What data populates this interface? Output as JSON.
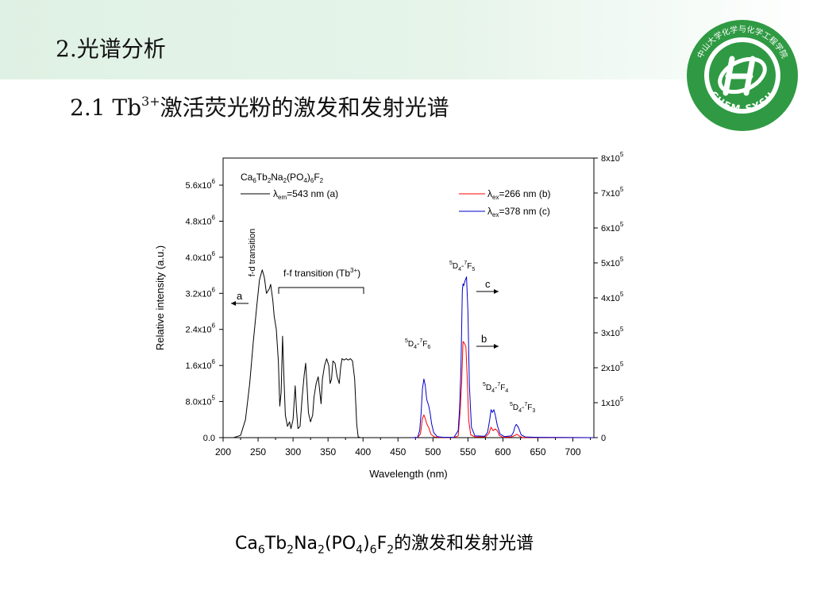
{
  "slide": {
    "title": "2.光谱分析",
    "subtitle_prefix": "2.1 Tb",
    "subtitle_sup": "3+",
    "subtitle_suffix": "激活荧光粉的激发和发射光谱",
    "caption_parts": [
      "Ca",
      "6",
      "Tb",
      "2",
      "Na",
      "2",
      "(PO",
      "4",
      ")",
      "6",
      "F",
      "2",
      "的激发和发射光谱"
    ]
  },
  "logo": {
    "text_top": "中山大学化学与化学工程学院",
    "text_bottom": "CHEM SYSU",
    "colors": {
      "green": "#2f9a43",
      "white": "#ffffff"
    }
  },
  "chart_data": {
    "type": "line",
    "xlabel": "Wavelength (nm)",
    "ylabel": "Relative intensity (a.u.)",
    "xlim": [
      200,
      730
    ],
    "ylim_left": [
      0,
      6200000
    ],
    "ylim_right": [
      0,
      800000
    ],
    "x_ticks": [
      200,
      250,
      300,
      350,
      400,
      450,
      500,
      550,
      600,
      650,
      700
    ],
    "left_ticks": [
      {
        "value": 0,
        "label": "0.0",
        "exp": ""
      },
      {
        "value": 800000,
        "label": "8.0x10",
        "exp": "5"
      },
      {
        "value": 1600000,
        "label": "1.6x10",
        "exp": "6"
      },
      {
        "value": 2400000,
        "label": "2.4x10",
        "exp": "6"
      },
      {
        "value": 3200000,
        "label": "3.2x10",
        "exp": "6"
      },
      {
        "value": 4000000,
        "label": "4.0x10",
        "exp": "6"
      },
      {
        "value": 4800000,
        "label": "4.8x10",
        "exp": "6"
      },
      {
        "value": 5600000,
        "label": "5.6x10",
        "exp": "6"
      }
    ],
    "right_ticks": [
      {
        "value": 0,
        "label": "0",
        "exp": ""
      },
      {
        "value": 100000,
        "label": "1x10",
        "exp": "5"
      },
      {
        "value": 200000,
        "label": "2x10",
        "exp": "5"
      },
      {
        "value": 300000,
        "label": "3x10",
        "exp": "5"
      },
      {
        "value": 400000,
        "label": "4x10",
        "exp": "5"
      },
      {
        "value": 500000,
        "label": "5x10",
        "exp": "5"
      },
      {
        "value": 600000,
        "label": "6x10",
        "exp": "5"
      },
      {
        "value": 700000,
        "label": "7x10",
        "exp": "5"
      },
      {
        "value": 800000,
        "label": "8x10",
        "exp": "5"
      }
    ],
    "compound_label": [
      "Ca",
      "6",
      "Tb",
      "2",
      "Na",
      "2",
      "(PO",
      "4",
      ")",
      "6",
      "F",
      "2"
    ],
    "legend": [
      {
        "key": "a",
        "color": "#000000",
        "pre": "λ",
        "sub": "em",
        "post": "=543 nm (a)"
      },
      {
        "key": "b",
        "color": "#ff0000",
        "pre": "λ",
        "sub": "ex",
        "post": "=266 nm (b)"
      },
      {
        "key": "c",
        "color": "#0000cc",
        "pre": "λ",
        "sub": "ex",
        "post": "=378 nm (c)"
      }
    ],
    "series": [
      {
        "key": "a",
        "axis": "left",
        "color": "#000000",
        "points": [
          [
            200,
            0
          ],
          [
            215,
            0
          ],
          [
            225,
            50000.0
          ],
          [
            232,
            400000.0
          ],
          [
            238,
            1200000.0
          ],
          [
            243,
            2100000.0
          ],
          [
            248,
            2900000.0
          ],
          [
            252,
            3500000.0
          ],
          [
            256,
            3720000.0
          ],
          [
            259,
            3550000.0
          ],
          [
            262,
            3200000.0
          ],
          [
            266,
            3300000.0
          ],
          [
            268,
            3400000.0
          ],
          [
            271,
            3050000.0
          ],
          [
            273,
            2700000.0
          ],
          [
            276,
            2400000.0
          ],
          [
            279,
            1700000.0
          ],
          [
            281,
            700000.0
          ],
          [
            283,
            1000000.0
          ],
          [
            285,
            2250000.0
          ],
          [
            287,
            1300000.0
          ],
          [
            289,
            500000.0
          ],
          [
            292,
            250000.0
          ],
          [
            295,
            350000.0
          ],
          [
            297,
            200000.0
          ],
          [
            300,
            400000.0
          ],
          [
            303,
            1150000.0
          ],
          [
            305,
            600000.0
          ],
          [
            307,
            200000.0
          ],
          [
            310,
            250000.0
          ],
          [
            313,
            900000.0
          ],
          [
            316,
            1400000.0
          ],
          [
            318,
            1650000.0
          ],
          [
            320,
            1150000.0
          ],
          [
            322,
            550000.0
          ],
          [
            325,
            350000.0
          ],
          [
            328,
            500000.0
          ],
          [
            330,
            900000.0
          ],
          [
            333,
            1200000.0
          ],
          [
            336,
            1350000.0
          ],
          [
            338,
            1050000.0
          ],
          [
            340,
            750000.0
          ],
          [
            342,
            1300000.0
          ],
          [
            345,
            1600000.0
          ],
          [
            348,
            1750000.0
          ],
          [
            351,
            1600000.0
          ],
          [
            353,
            1200000.0
          ],
          [
            355,
            1300000.0
          ],
          [
            357,
            1700000.0
          ],
          [
            360,
            1650000.0
          ],
          [
            363,
            1350000.0
          ],
          [
            366,
            1200000.0
          ],
          [
            368,
            1550000.0
          ],
          [
            370,
            1750000.0
          ],
          [
            373,
            1720000.0
          ],
          [
            376,
            1750000.0
          ],
          [
            379,
            1720000.0
          ],
          [
            382,
            1750000.0
          ],
          [
            385,
            1700000.0
          ],
          [
            388,
            1300000.0
          ],
          [
            391,
            300000.0
          ],
          [
            393,
            20000.0
          ],
          [
            396,
            0
          ],
          [
            730,
            0
          ]
        ]
      },
      {
        "key": "b",
        "axis": "right",
        "color": "#ff0000",
        "points": [
          [
            470,
            0
          ],
          [
            478,
            500.0
          ],
          [
            482,
            10000.0
          ],
          [
            485,
            55000.0
          ],
          [
            487,
            65000.0
          ],
          [
            489,
            55000.0
          ],
          [
            491,
            40000.0
          ],
          [
            494,
            28000.0
          ],
          [
            497,
            10000.0
          ],
          [
            502,
            2000.0
          ],
          [
            510,
            500.0
          ],
          [
            530,
            500.0
          ],
          [
            536,
            5000.0
          ],
          [
            539,
            80000.0
          ],
          [
            541,
            160000.0
          ],
          [
            543,
            275000.0
          ],
          [
            545,
            270000.0
          ],
          [
            547,
            260000.0
          ],
          [
            549,
            170000.0
          ],
          [
            551,
            50000.0
          ],
          [
            554,
            8000.0
          ],
          [
            560,
            2000.0
          ],
          [
            575,
            2000.0
          ],
          [
            580,
            12000.0
          ],
          [
            583,
            30000.0
          ],
          [
            586,
            20000.0
          ],
          [
            589,
            25000.0
          ],
          [
            592,
            20000.0
          ],
          [
            595,
            6000.0
          ],
          [
            600,
            1000.0
          ],
          [
            612,
            2000.0
          ],
          [
            617,
            6000.0
          ],
          [
            620,
            10000.0
          ],
          [
            623,
            5000.0
          ],
          [
            628,
            500.0
          ],
          [
            650,
            500.0
          ],
          [
            730,
            0
          ]
        ]
      },
      {
        "key": "c",
        "axis": "right",
        "color": "#0000cc",
        "points": [
          [
            470,
            0
          ],
          [
            478,
            1000.0
          ],
          [
            481,
            20000.0
          ],
          [
            483,
            70000.0
          ],
          [
            485,
            140000.0
          ],
          [
            487,
            168000.0
          ],
          [
            489,
            150000.0
          ],
          [
            491,
            110000.0
          ],
          [
            494,
            90000.0
          ],
          [
            496,
            70000.0
          ],
          [
            498,
            40000.0
          ],
          [
            501,
            15000.0
          ],
          [
            506,
            3000.0
          ],
          [
            515,
            1000.0
          ],
          [
            530,
            1000.0
          ],
          [
            536,
            20000.0
          ],
          [
            538,
            80000.0
          ],
          [
            540,
            200000.0
          ],
          [
            542,
            420000.0
          ],
          [
            543,
            440000.0
          ],
          [
            544,
            435000.0
          ],
          [
            546,
            450000.0
          ],
          [
            548,
            460000.0
          ],
          [
            550,
            360000.0
          ],
          [
            552,
            150000.0
          ],
          [
            555,
            30000.0
          ],
          [
            560,
            5000.0
          ],
          [
            574,
            4000.0
          ],
          [
            578,
            15000.0
          ],
          [
            581,
            50000.0
          ],
          [
            583,
            80000.0
          ],
          [
            585,
            72000.0
          ],
          [
            587,
            80000.0
          ],
          [
            589,
            65000.0
          ],
          [
            592,
            35000.0
          ],
          [
            596,
            10000.0
          ],
          [
            602,
            3000.0
          ],
          [
            612,
            5000.0
          ],
          [
            615,
            15000.0
          ],
          [
            617,
            30000.0
          ],
          [
            619,
            38000.0
          ],
          [
            621,
            33000.0
          ],
          [
            623,
            25000.0
          ],
          [
            626,
            8000.0
          ],
          [
            632,
            2000.0
          ],
          [
            650,
            1000.0
          ],
          [
            670,
            500.0
          ],
          [
            730,
            0
          ]
        ]
      }
    ],
    "annotations": {
      "fd_transition": "f-d transition",
      "ff_transition_pre": "f-f transition (Tb",
      "ff_transition_sup": "3+",
      "ff_transition_post": ")",
      "arrow_a": "a",
      "arrow_b": "b",
      "arrow_c": "c",
      "peaks": [
        {
          "key": "d4f5",
          "sup1": "5",
          "mid": "D",
          "sub1": "4",
          "dash": "-",
          "sup2": "7",
          "mid2": "F",
          "sub2": "5"
        },
        {
          "key": "d4f6",
          "sup1": "5",
          "mid": "D",
          "sub1": "4",
          "dash": "-",
          "sup2": "7",
          "mid2": "F",
          "sub2": "6"
        },
        {
          "key": "d4f4",
          "sup1": "5",
          "mid": "D",
          "sub1": "4",
          "dash": "-",
          "sup2": "7",
          "mid2": "F",
          "sub2": "4"
        },
        {
          "key": "d4f3",
          "sup1": "5",
          "mid": "D",
          "sub1": "4",
          "dash": "-",
          "sup2": "7",
          "mid2": "F",
          "sub2": "3"
        }
      ]
    }
  }
}
